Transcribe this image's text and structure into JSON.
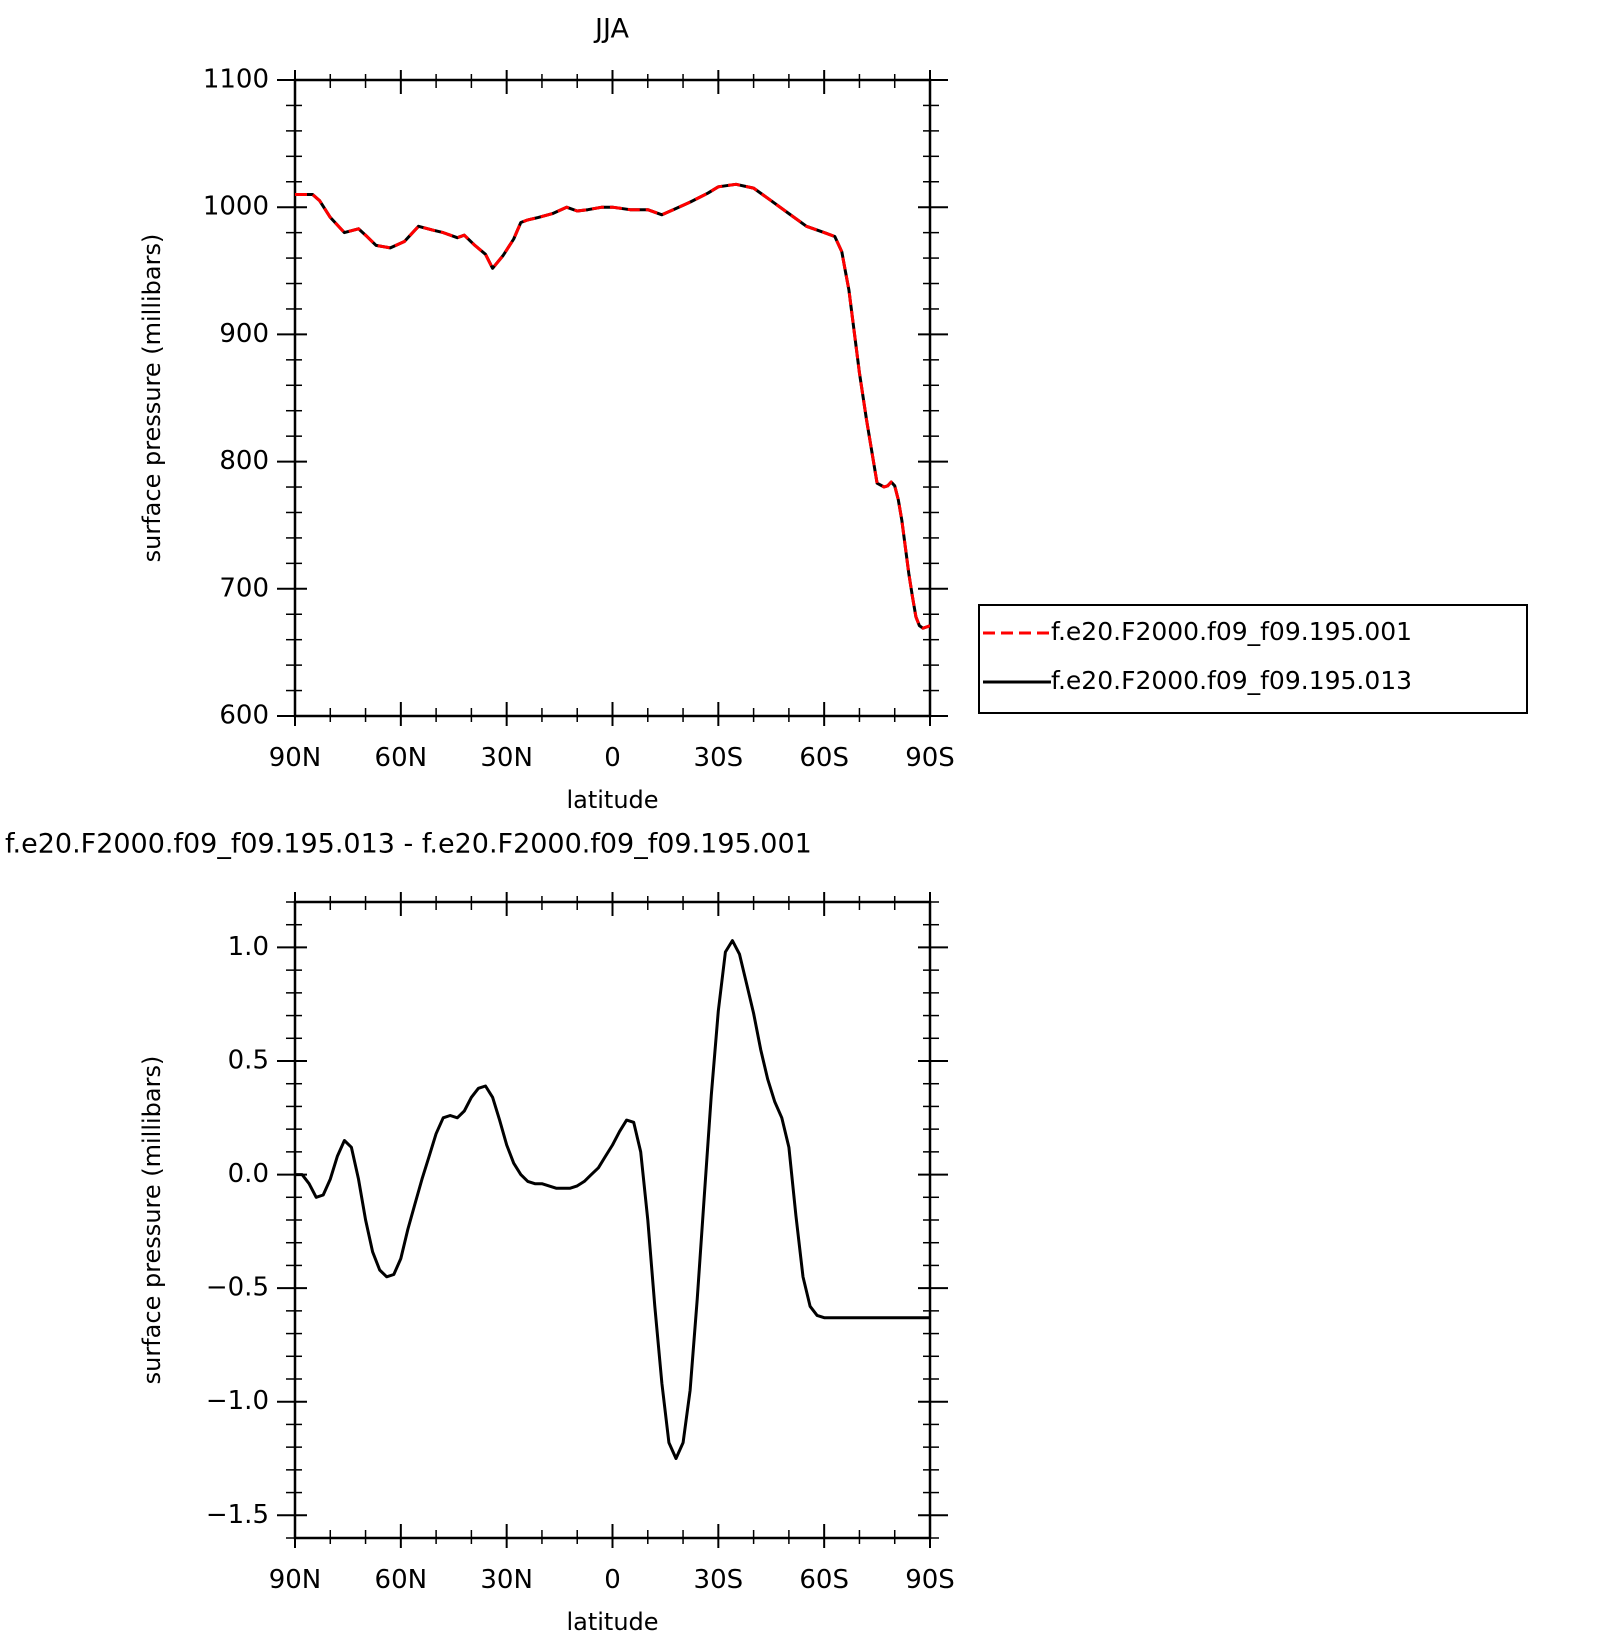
{
  "chart_data": [
    {
      "type": "line",
      "title": "JJA",
      "xlabel": "latitude",
      "ylabel": "surface pressure (millibars)",
      "xlim": [
        -90,
        90
      ],
      "ylim": [
        600,
        1100
      ],
      "x_ticks": [
        -90,
        -60,
        -30,
        0,
        30,
        60,
        90
      ],
      "x_tick_labels": [
        "90N",
        "60N",
        "30N",
        "0",
        "30S",
        "60S",
        "90S"
      ],
      "y_ticks": [
        600,
        700,
        800,
        900,
        1000,
        1100
      ],
      "y_tick_labels": [
        "600",
        "700",
        "800",
        "900",
        "1000",
        "1100"
      ],
      "grid": false,
      "legend_position": "right",
      "series": [
        {
          "name": "f.e20.F2000.f09_f09.195.001",
          "color": "#ff0000",
          "dash": "dashed",
          "x": [
            -90,
            -85,
            -83,
            -80,
            -76,
            -72,
            -70,
            -67,
            -63,
            -59,
            -55,
            -51,
            -48,
            -44,
            -42,
            -39,
            -36,
            -34,
            -31,
            -28,
            -26,
            -24,
            -21,
            -17,
            -13,
            -10,
            -7,
            -3,
            0,
            5,
            10,
            14,
            18,
            22,
            27,
            30,
            35,
            40,
            45,
            50,
            55,
            60,
            63,
            65,
            66,
            67,
            70,
            72,
            75,
            77,
            78,
            79,
            80,
            81,
            82,
            83,
            84,
            85,
            86,
            87,
            88,
            89,
            90
          ],
          "y": [
            1010,
            1010,
            1005,
            992,
            980,
            983,
            978,
            970,
            968,
            973,
            985,
            982,
            980,
            976,
            978,
            970,
            963,
            952,
            962,
            975,
            988,
            990,
            992,
            995,
            1000,
            997,
            998,
            1000,
            1000,
            998,
            998,
            994,
            999,
            1004,
            1011,
            1016,
            1018,
            1015,
            1005,
            995,
            985,
            980,
            977,
            965,
            950,
            935,
            870,
            833,
            783,
            780,
            781,
            784,
            781,
            770,
            754,
            733,
            712,
            694,
            678,
            671,
            669,
            670,
            671
          ]
        },
        {
          "name": "f.e20.F2000.f09_f09.195.013",
          "color": "#000000",
          "dash": "solid",
          "x": [
            -90,
            -85,
            -83,
            -80,
            -76,
            -72,
            -70,
            -67,
            -63,
            -59,
            -55,
            -51,
            -48,
            -44,
            -42,
            -39,
            -36,
            -34,
            -31,
            -28,
            -26,
            -24,
            -21,
            -17,
            -13,
            -10,
            -7,
            -3,
            0,
            5,
            10,
            14,
            18,
            22,
            27,
            30,
            35,
            40,
            45,
            50,
            55,
            60,
            63,
            65,
            66,
            67,
            70,
            72,
            75,
            77,
            78,
            79,
            80,
            81,
            82,
            83,
            84,
            85,
            86,
            87,
            88,
            89,
            90
          ],
          "y": [
            1010,
            1010,
            1005,
            992,
            980,
            983,
            978,
            970,
            968,
            973,
            985,
            982,
            980,
            976,
            978,
            970,
            963,
            952,
            962,
            975,
            988,
            990,
            992,
            995,
            1000,
            997,
            998,
            1000,
            1000,
            998,
            998,
            994,
            999,
            1004,
            1011,
            1016,
            1018,
            1015,
            1005,
            995,
            985,
            980,
            977,
            965,
            950,
            935,
            870,
            833,
            783,
            780,
            781,
            784,
            781,
            770,
            754,
            733,
            712,
            694,
            678,
            671,
            669,
            670,
            671
          ]
        }
      ]
    },
    {
      "type": "line",
      "title": "f.e20.F2000.f09_f09.195.013 - f.e20.F2000.f09_f09.195.001",
      "xlabel": "latitude",
      "ylabel": "surface pressure (millibars)",
      "xlim": [
        -90,
        90
      ],
      "ylim": [
        -1.6,
        1.2
      ],
      "x_ticks": [
        -90,
        -60,
        -30,
        0,
        30,
        60,
        90
      ],
      "x_tick_labels": [
        "90N",
        "60N",
        "30N",
        "0",
        "30S",
        "60S",
        "90S"
      ],
      "y_ticks": [
        -1.5,
        -1.0,
        -0.5,
        0.0,
        0.5,
        1.0
      ],
      "y_tick_labels": [
        "−1.5",
        "−1.0",
        "−0.5",
        "0.0",
        "0.5",
        "1.0"
      ],
      "grid": false,
      "series": [
        {
          "color": "#000000",
          "dash": "solid",
          "x": [
            -90,
            -88,
            -86,
            -84,
            -82,
            -80,
            -78,
            -76,
            -74,
            -72,
            -70,
            -68,
            -66,
            -64,
            -62,
            -60,
            -58,
            -56,
            -54,
            -52,
            -50,
            -48,
            -46,
            -44,
            -42,
            -40,
            -38,
            -36,
            -34,
            -32,
            -30,
            -28,
            -26,
            -24,
            -22,
            -20,
            -18,
            -16,
            -14,
            -12,
            -10,
            -8,
            -6,
            -4,
            -2,
            0,
            2,
            4,
            6,
            8,
            10,
            12,
            14,
            16,
            18,
            20,
            22,
            24,
            26,
            28,
            30,
            32,
            34,
            36,
            38,
            40,
            42,
            44,
            46,
            48,
            50,
            52,
            54,
            56,
            58,
            60,
            62,
            64,
            66,
            68,
            70,
            72,
            74,
            76,
            78,
            80,
            82,
            84,
            86,
            88,
            90
          ],
          "y": [
            0.0,
            0.0,
            -0.04,
            -0.1,
            -0.09,
            -0.02,
            0.08,
            0.15,
            0.12,
            -0.02,
            -0.2,
            -0.34,
            -0.42,
            -0.45,
            -0.44,
            -0.37,
            -0.24,
            -0.13,
            -0.02,
            0.08,
            0.18,
            0.25,
            0.26,
            0.25,
            0.28,
            0.34,
            0.38,
            0.39,
            0.34,
            0.24,
            0.13,
            0.05,
            0.0,
            -0.03,
            -0.04,
            -0.04,
            -0.05,
            -0.06,
            -0.06,
            -0.06,
            -0.05,
            -0.03,
            0.0,
            0.03,
            0.08,
            0.13,
            0.19,
            0.24,
            0.23,
            0.1,
            -0.2,
            -0.58,
            -0.92,
            -1.18,
            -1.25,
            -1.18,
            -0.95,
            -0.55,
            -0.1,
            0.35,
            0.72,
            0.98,
            1.03,
            0.97,
            0.84,
            0.71,
            0.55,
            0.42,
            0.32,
            0.25,
            0.12,
            -0.18,
            -0.45,
            -0.58,
            -0.62,
            -0.63,
            -0.63,
            -0.63,
            -0.63,
            -0.63,
            -0.63,
            -0.63,
            -0.63,
            -0.63,
            -0.63,
            -0.63,
            -0.63,
            -0.63,
            -0.63,
            -0.63,
            -0.63
          ]
        }
      ]
    }
  ]
}
